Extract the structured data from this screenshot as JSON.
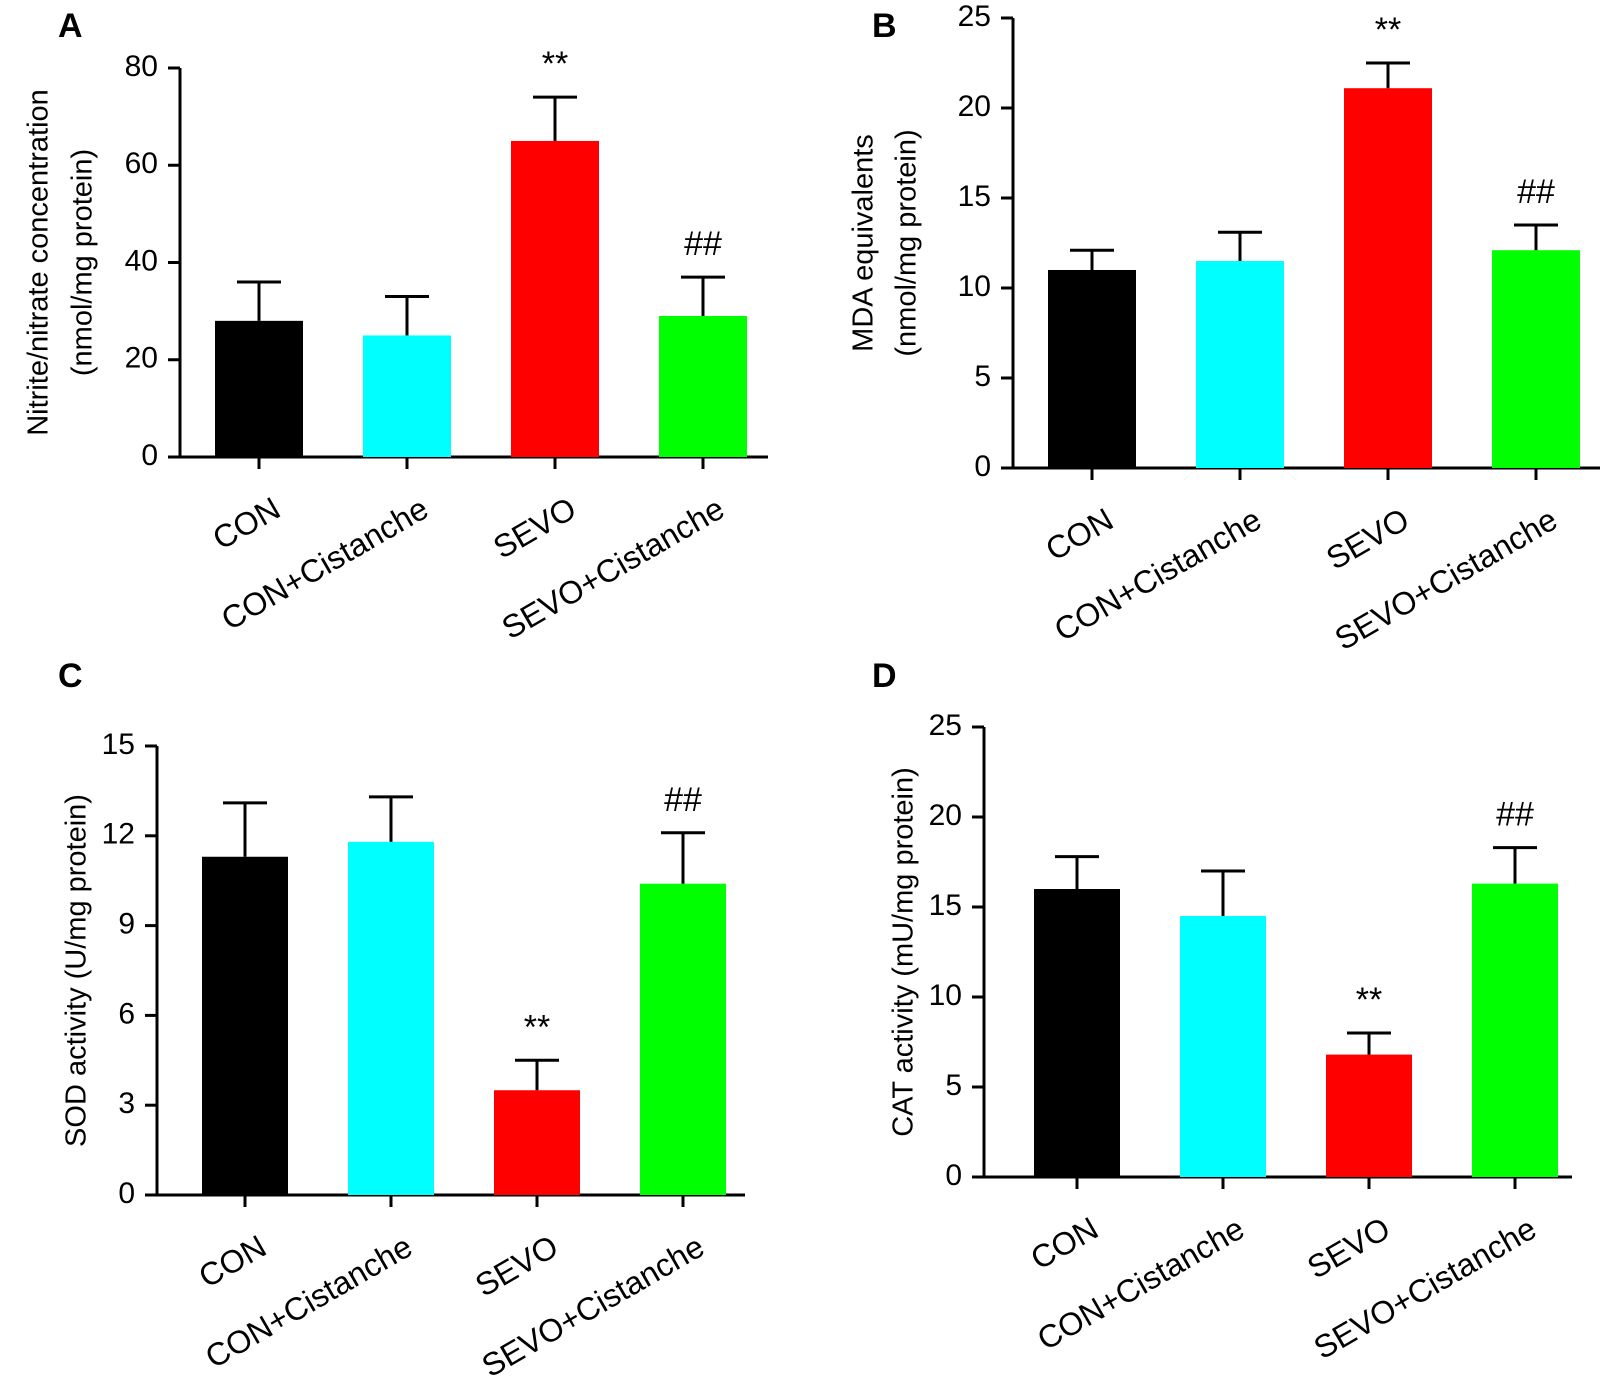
{
  "figure": {
    "background": "#ffffff",
    "colors": [
      "#000000",
      "#00ffff",
      "#ff0000",
      "#00ff00"
    ]
  },
  "chart_data": [
    {
      "panel": "A",
      "type": "bar",
      "categories": [
        "CON",
        "CON+Cistanche",
        "SEVO",
        "SEVO+Cistanche"
      ],
      "values": [
        28,
        25,
        65,
        29
      ],
      "errors": [
        8,
        8,
        9,
        8
      ],
      "annotations": [
        "",
        "",
        "**",
        "##"
      ],
      "ylabel_lines": [
        "Nitrite/nitrate concentration",
        "(nmol/mg protein)"
      ],
      "ylim": [
        0,
        80
      ],
      "yticks": [
        0,
        20,
        40,
        60,
        80
      ],
      "grid": false,
      "legend": "none"
    },
    {
      "panel": "B",
      "type": "bar",
      "categories": [
        "CON",
        "CON+Cistanche",
        "SEVO",
        "SEVO+Cistanche"
      ],
      "values": [
        11,
        11.5,
        21.1,
        12.1
      ],
      "errors": [
        1.1,
        1.6,
        1.4,
        1.4
      ],
      "annotations": [
        "",
        "",
        "**",
        "##"
      ],
      "ylabel_lines": [
        "MDA equivalents",
        "(nmol/mg protein)"
      ],
      "ylim": [
        0,
        25
      ],
      "yticks": [
        0,
        5,
        10,
        15,
        20,
        25
      ],
      "grid": false,
      "legend": "none"
    },
    {
      "panel": "C",
      "type": "bar",
      "categories": [
        "CON",
        "CON+Cistanche",
        "SEVO",
        "SEVO+Cistanche"
      ],
      "values": [
        11.3,
        11.8,
        3.5,
        10.4
      ],
      "errors": [
        1.8,
        1.5,
        1.0,
        1.7
      ],
      "annotations": [
        "",
        "",
        "**",
        "##"
      ],
      "ylabel_lines": [
        "SOD activity (U/mg protein)"
      ],
      "ylim": [
        0,
        15
      ],
      "yticks": [
        0,
        3,
        6,
        9,
        12,
        15
      ],
      "grid": false,
      "legend": "none"
    },
    {
      "panel": "D",
      "type": "bar",
      "categories": [
        "CON",
        "CON+Cistanche",
        "SEVO",
        "SEVO+Cistanche"
      ],
      "values": [
        16,
        14.5,
        6.8,
        16.3
      ],
      "errors": [
        1.8,
        2.5,
        1.2,
        2.0
      ],
      "annotations": [
        "",
        "",
        "**",
        "##"
      ],
      "ylabel_lines": [
        "CAT activity (mU/mg protein)"
      ],
      "ylim": [
        0,
        25
      ],
      "yticks": [
        0,
        5,
        10,
        15,
        20,
        25
      ],
      "grid": false,
      "legend": "none"
    }
  ]
}
